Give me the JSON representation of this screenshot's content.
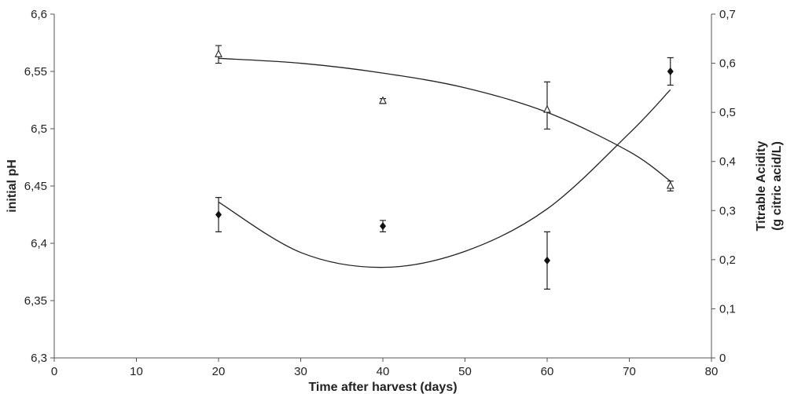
{
  "chart_data": {
    "type": "scatter",
    "title": "",
    "xlabel": "Time after harvest (days)",
    "ylabel": "initial pH",
    "y2label": [
      "Titrable Acidity",
      "(g citric acid/L)"
    ],
    "xlim": [
      0,
      80
    ],
    "ylim": [
      6.3,
      6.6
    ],
    "y2lim": [
      0,
      0.7
    ],
    "x_ticks": [
      0,
      10,
      20,
      30,
      40,
      50,
      60,
      70,
      80
    ],
    "y_ticks": [
      6.3,
      6.35,
      6.4,
      6.45,
      6.5,
      6.55,
      6.6
    ],
    "y_tick_labels": [
      "6,3",
      "6,35",
      "6,4",
      "6,45",
      "6,5",
      "6,55",
      "6,6"
    ],
    "y2_ticks": [
      0,
      0.1,
      0.2,
      0.3,
      0.4,
      0.5,
      0.6,
      0.7
    ],
    "y2_tick_labels": [
      "0",
      "0,1",
      "0,2",
      "0,3",
      "0,4",
      "0,5",
      "0,6",
      "0,7"
    ],
    "grid": false,
    "legend": false,
    "series": [
      {
        "marker": "diamond-filled",
        "axis": "left",
        "x": [
          20,
          40,
          60,
          75
        ],
        "y": [
          6.425,
          6.415,
          6.385,
          6.55
        ],
        "err_low": [
          6.41,
          6.41,
          6.36,
          6.538
        ],
        "err_high": [
          6.44,
          6.42,
          6.41,
          6.562
        ],
        "trend": "polynomial",
        "trend_x": [
          20,
          30,
          40,
          50,
          60,
          70,
          75
        ],
        "trend_y": [
          6.436,
          6.392,
          6.379,
          6.393,
          6.43,
          6.496,
          6.534
        ]
      },
      {
        "marker": "triangle-open",
        "axis": "right",
        "x": [
          20,
          40,
          60,
          75
        ],
        "y": [
          0.618,
          0.523,
          0.505,
          0.35
        ],
        "err_low": [
          0.6,
          0.518,
          0.466,
          0.34
        ],
        "err_high": [
          0.636,
          0.528,
          0.562,
          0.36
        ],
        "trend": "polynomial",
        "trend_x": [
          20,
          30,
          40,
          50,
          60,
          70,
          75
        ],
        "trend_y": [
          0.61,
          0.6,
          0.58,
          0.55,
          0.5,
          0.42,
          0.36
        ]
      }
    ]
  }
}
